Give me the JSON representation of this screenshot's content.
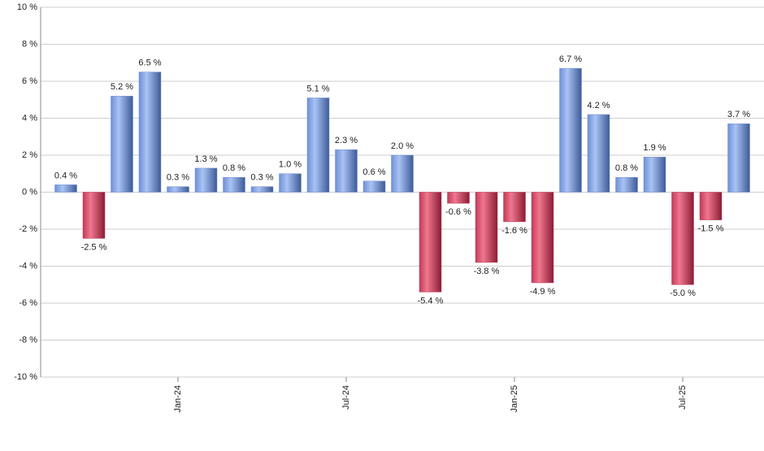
{
  "chart_data": {
    "type": "bar",
    "categories": [
      null,
      null,
      null,
      null,
      "Jan-24",
      null,
      null,
      null,
      null,
      null,
      "Jul-24",
      null,
      null,
      null,
      null,
      null,
      "Jan-25",
      null,
      null,
      null,
      null,
      null,
      "Jul-25",
      null,
      null
    ],
    "values": [
      0.4,
      -2.5,
      5.2,
      6.5,
      0.3,
      1.3,
      0.8,
      0.3,
      1.0,
      5.1,
      2.3,
      0.6,
      2.0,
      -5.4,
      -0.6,
      -3.8,
      -1.6,
      -4.9,
      6.7,
      4.2,
      0.8,
      1.9,
      -5.0,
      -1.5,
      3.7
    ],
    "value_labels": [
      "0.4 %",
      "-2.5 %",
      "5.2 %",
      "6.5 %",
      "0.3 %",
      "1.3 %",
      "0.8 %",
      "0.3 %",
      "1.0 %",
      "5.1 %",
      "2.3 %",
      "0.6 %",
      "2.0 %",
      "-5.4 %",
      "-0.6 %",
      "-3.8 %",
      "-1.6 %",
      "-4.9 %",
      "6.7 %",
      "4.2 %",
      "0.8 %",
      "1.9 %",
      "-5.0 %",
      "-1.5 %",
      "3.7 %"
    ],
    "color": "#6f8fd6",
    "negative_color": "#c23a58",
    "ylim": [
      -10,
      10
    ],
    "yticks": [
      {
        "value": -10,
        "label": "-10 %"
      },
      {
        "value": -8,
        "label": "-8 %"
      },
      {
        "value": -6,
        "label": "-6 %"
      },
      {
        "value": -4,
        "label": "-4 %"
      },
      {
        "value": -2,
        "label": "-2 %"
      },
      {
        "value": 0,
        "label": "0 %"
      },
      {
        "value": 2,
        "label": "2 %"
      },
      {
        "value": 4,
        "label": "4 %"
      },
      {
        "value": 6,
        "label": "6 %"
      },
      {
        "value": 8,
        "label": "8 %"
      },
      {
        "value": 10,
        "label": "10 %"
      }
    ],
    "grid": true
  }
}
